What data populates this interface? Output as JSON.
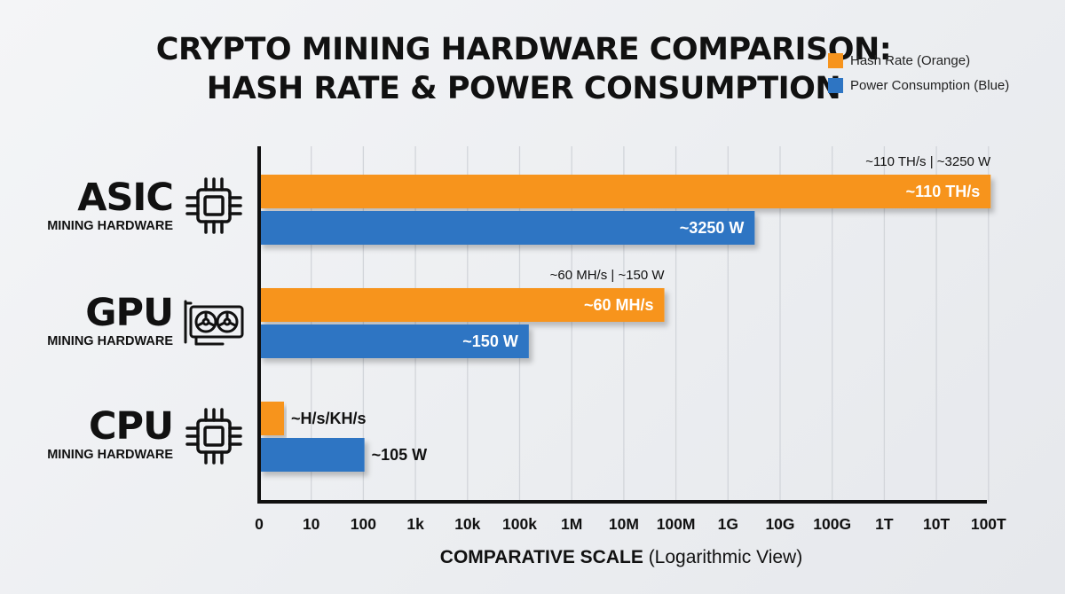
{
  "title_line1": "CRYPTO MINING HARDWARE COMPARISON:",
  "title_line2": "HASH RATE & POWER CONSUMPTION",
  "legend": [
    {
      "label": "Hash Rate (Orange)",
      "color": "#f7941d"
    },
    {
      "label": "Power Consumption (Blue)",
      "color": "#2e75c3"
    }
  ],
  "rows": [
    {
      "name": "ASIC",
      "sub": "MINING HARDWARE",
      "icon": "chip-icon"
    },
    {
      "name": "GPU",
      "sub": "MINING HARDWARE",
      "icon": "graphics-card-icon"
    },
    {
      "name": "CPU",
      "sub": "MINING HARDWARE",
      "icon": "chip-icon"
    }
  ],
  "xlabel_bold": "COMPARATIVE SCALE",
  "xlabel_rest": "(Logarithmic View)",
  "chart_data": {
    "type": "bar",
    "orientation": "horizontal",
    "title": "CRYPTO MINING HARDWARE COMPARISON: HASH RATE & POWER CONSUMPTION",
    "xlabel": "COMPARATIVE SCALE (Logarithmic View)",
    "x_scale": "log",
    "x_ticks": [
      "0",
      "10",
      "100",
      "1k",
      "10k",
      "100k",
      "1M",
      "10M",
      "100M",
      "1G",
      "10G",
      "100G",
      "1T",
      "10T",
      "100T"
    ],
    "categories": [
      "ASIC",
      "GPU",
      "CPU"
    ],
    "grid": true,
    "legend_position": "top-right",
    "series": [
      {
        "name": "Hash Rate (Orange)",
        "color": "#f7941d",
        "values": [
          110000000000000,
          60000000,
          3
        ],
        "labels": [
          "~110 TH/s",
          "~60 MH/s",
          "~H/s/KH/s"
        ]
      },
      {
        "name": "Power Consumption (Blue)",
        "color": "#2e75c3",
        "values": [
          3250000000,
          150000,
          105
        ],
        "labels": [
          "~3250 W",
          "~150 W",
          "~105 W"
        ]
      }
    ],
    "annotations": [
      "~110 TH/s | ~3250 W",
      "~60 MH/s | ~150 W"
    ]
  }
}
